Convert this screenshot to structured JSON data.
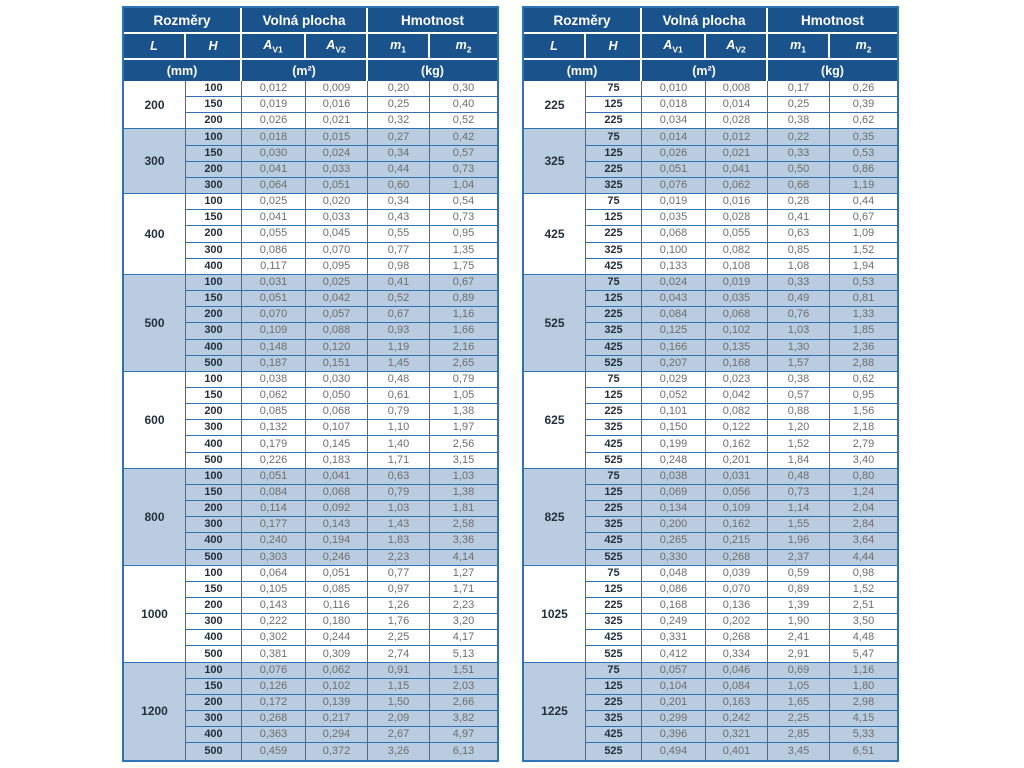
{
  "header": {
    "group_dimensions": "Rozměry",
    "group_free_area": "Volná plocha",
    "group_weight": "Hmotnost",
    "cols": {
      "l": "L",
      "h": "H",
      "a1": {
        "base": "A",
        "sub": "V1"
      },
      "a2": {
        "base": "A",
        "sub": "V2"
      },
      "m1": {
        "base": "m",
        "sub": "1"
      },
      "m2": {
        "base": "m",
        "sub": "2"
      }
    },
    "units": {
      "mm": "(mm)",
      "m2": "(m²)",
      "kg": "(kg)"
    }
  },
  "colors": {
    "header_bg": "#1a528c",
    "border_blue": "#2e74b5",
    "shade_row": "#b9cce0",
    "value_text": "#6e6e6e",
    "dark_text": "#25303f"
  },
  "tables": [
    {
      "name": "left-table",
      "groups": [
        {
          "L": "200",
          "rows": [
            [
              "100",
              "0,012",
              "0,009",
              "0,20",
              "0,30"
            ],
            [
              "150",
              "0,019",
              "0,016",
              "0,25",
              "0,40"
            ],
            [
              "200",
              "0,026",
              "0,021",
              "0,32",
              "0,52"
            ]
          ]
        },
        {
          "L": "300",
          "rows": [
            [
              "100",
              "0,018",
              "0,015",
              "0,27",
              "0,42"
            ],
            [
              "150",
              "0,030",
              "0,024",
              "0,34",
              "0,57"
            ],
            [
              "200",
              "0,041",
              "0,033",
              "0,44",
              "0,73"
            ],
            [
              "300",
              "0,064",
              "0,051",
              "0,60",
              "1,04"
            ]
          ]
        },
        {
          "L": "400",
          "rows": [
            [
              "100",
              "0,025",
              "0,020",
              "0,34",
              "0,54"
            ],
            [
              "150",
              "0,041",
              "0,033",
              "0,43",
              "0,73"
            ],
            [
              "200",
              "0,055",
              "0,045",
              "0,55",
              "0,95"
            ],
            [
              "300",
              "0,086",
              "0,070",
              "0,77",
              "1,35"
            ],
            [
              "400",
              "0,117",
              "0,095",
              "0,98",
              "1,75"
            ]
          ]
        },
        {
          "L": "500",
          "rows": [
            [
              "100",
              "0,031",
              "0,025",
              "0,41",
              "0,67"
            ],
            [
              "150",
              "0,051",
              "0,042",
              "0,52",
              "0,89"
            ],
            [
              "200",
              "0,070",
              "0,057",
              "0,67",
              "1,16"
            ],
            [
              "300",
              "0,109",
              "0,088",
              "0,93",
              "1,66"
            ],
            [
              "400",
              "0,148",
              "0,120",
              "1,19",
              "2,16"
            ],
            [
              "500",
              "0,187",
              "0,151",
              "1,45",
              "2,65"
            ]
          ]
        },
        {
          "L": "600",
          "rows": [
            [
              "100",
              "0,038",
              "0,030",
              "0,48",
              "0,79"
            ],
            [
              "150",
              "0,062",
              "0,050",
              "0,61",
              "1,05"
            ],
            [
              "200",
              "0,085",
              "0,068",
              "0,79",
              "1,38"
            ],
            [
              "300",
              "0,132",
              "0,107",
              "1,10",
              "1,97"
            ],
            [
              "400",
              "0,179",
              "0,145",
              "1,40",
              "2,56"
            ],
            [
              "500",
              "0,226",
              "0,183",
              "1,71",
              "3,15"
            ]
          ]
        },
        {
          "L": "800",
          "rows": [
            [
              "100",
              "0,051",
              "0,041",
              "0,63",
              "1,03"
            ],
            [
              "150",
              "0,084",
              "0,068",
              "0,79",
              "1,38"
            ],
            [
              "200",
              "0,114",
              "0,092",
              "1,03",
              "1,81"
            ],
            [
              "300",
              "0,177",
              "0,143",
              "1,43",
              "2,58"
            ],
            [
              "400",
              "0,240",
              "0,194",
              "1,83",
              "3,36"
            ],
            [
              "500",
              "0,303",
              "0,246",
              "2,23",
              "4,14"
            ]
          ]
        },
        {
          "L": "1000",
          "rows": [
            [
              "100",
              "0,064",
              "0,051",
              "0,77",
              "1,27"
            ],
            [
              "150",
              "0,105",
              "0,085",
              "0,97",
              "1,71"
            ],
            [
              "200",
              "0,143",
              "0,116",
              "1,26",
              "2,23"
            ],
            [
              "300",
              "0,222",
              "0,180",
              "1,76",
              "3,20"
            ],
            [
              "400",
              "0,302",
              "0,244",
              "2,25",
              "4,17"
            ],
            [
              "500",
              "0,381",
              "0,309",
              "2,74",
              "5,13"
            ]
          ]
        },
        {
          "L": "1200",
          "rows": [
            [
              "100",
              "0,076",
              "0,062",
              "0,91",
              "1,51"
            ],
            [
              "150",
              "0,126",
              "0,102",
              "1,15",
              "2,03"
            ],
            [
              "200",
              "0,172",
              "0,139",
              "1,50",
              "2,66"
            ],
            [
              "300",
              "0,268",
              "0,217",
              "2,09",
              "3,82"
            ],
            [
              "400",
              "0,363",
              "0,294",
              "2,67",
              "4,97"
            ],
            [
              "500",
              "0,459",
              "0,372",
              "3,26",
              "6,13"
            ]
          ]
        }
      ]
    },
    {
      "name": "right-table",
      "groups": [
        {
          "L": "225",
          "rows": [
            [
              "75",
              "0,010",
              "0,008",
              "0,17",
              "0,26"
            ],
            [
              "125",
              "0,018",
              "0,014",
              "0,25",
              "0,39"
            ],
            [
              "225",
              "0,034",
              "0,028",
              "0,38",
              "0,62"
            ]
          ]
        },
        {
          "L": "325",
          "rows": [
            [
              "75",
              "0,014",
              "0,012",
              "0,22",
              "0,35"
            ],
            [
              "125",
              "0,026",
              "0,021",
              "0,33",
              "0,53"
            ],
            [
              "225",
              "0,051",
              "0,041",
              "0,50",
              "0,86"
            ],
            [
              "325",
              "0,076",
              "0,062",
              "0,68",
              "1,19"
            ]
          ]
        },
        {
          "L": "425",
          "rows": [
            [
              "75",
              "0,019",
              "0,016",
              "0,28",
              "0,44"
            ],
            [
              "125",
              "0,035",
              "0,028",
              "0,41",
              "0,67"
            ],
            [
              "225",
              "0,068",
              "0,055",
              "0,63",
              "1,09"
            ],
            [
              "325",
              "0,100",
              "0,082",
              "0,85",
              "1,52"
            ],
            [
              "425",
              "0,133",
              "0,108",
              "1,08",
              "1,94"
            ]
          ]
        },
        {
          "L": "525",
          "rows": [
            [
              "75",
              "0,024",
              "0,019",
              "0,33",
              "0,53"
            ],
            [
              "125",
              "0,043",
              "0,035",
              "0,49",
              "0,81"
            ],
            [
              "225",
              "0,084",
              "0,068",
              "0,76",
              "1,33"
            ],
            [
              "325",
              "0,125",
              "0,102",
              "1,03",
              "1,85"
            ],
            [
              "425",
              "0,166",
              "0,135",
              "1,30",
              "2,36"
            ],
            [
              "525",
              "0,207",
              "0,168",
              "1,57",
              "2,88"
            ]
          ]
        },
        {
          "L": "625",
          "rows": [
            [
              "75",
              "0,029",
              "0,023",
              "0,38",
              "0,62"
            ],
            [
              "125",
              "0,052",
              "0,042",
              "0,57",
              "0,95"
            ],
            [
              "225",
              "0,101",
              "0,082",
              "0,88",
              "1,56"
            ],
            [
              "325",
              "0,150",
              "0,122",
              "1,20",
              "2,18"
            ],
            [
              "425",
              "0,199",
              "0,162",
              "1,52",
              "2,79"
            ],
            [
              "525",
              "0,248",
              "0,201",
              "1,84",
              "3,40"
            ]
          ]
        },
        {
          "L": "825",
          "rows": [
            [
              "75",
              "0,038",
              "0,031",
              "0,48",
              "0,80"
            ],
            [
              "125",
              "0,069",
              "0,056",
              "0,73",
              "1,24"
            ],
            [
              "225",
              "0,134",
              "0,109",
              "1,14",
              "2,04"
            ],
            [
              "325",
              "0,200",
              "0,162",
              "1,55",
              "2,84"
            ],
            [
              "425",
              "0,265",
              "0,215",
              "1,96",
              "3,64"
            ],
            [
              "525",
              "0,330",
              "0,268",
              "2,37",
              "4,44"
            ]
          ]
        },
        {
          "L": "1025",
          "rows": [
            [
              "75",
              "0,048",
              "0,039",
              "0,59",
              "0,98"
            ],
            [
              "125",
              "0,086",
              "0,070",
              "0,89",
              "1,52"
            ],
            [
              "225",
              "0,168",
              "0,136",
              "1,39",
              "2,51"
            ],
            [
              "325",
              "0,249",
              "0,202",
              "1,90",
              "3,50"
            ],
            [
              "425",
              "0,331",
              "0,268",
              "2,41",
              "4,48"
            ],
            [
              "525",
              "0,412",
              "0,334",
              "2,91",
              "5,47"
            ]
          ]
        },
        {
          "L": "1225",
          "rows": [
            [
              "75",
              "0,057",
              "0,046",
              "0,69",
              "1,16"
            ],
            [
              "125",
              "0,104",
              "0,084",
              "1,05",
              "1,80"
            ],
            [
              "225",
              "0,201",
              "0,163",
              "1,65",
              "2,98"
            ],
            [
              "325",
              "0,299",
              "0,242",
              "2,25",
              "4,15"
            ],
            [
              "425",
              "0,396",
              "0,321",
              "2,85",
              "5,33"
            ],
            [
              "525",
              "0,494",
              "0,401",
              "3,45",
              "6,51"
            ]
          ]
        }
      ]
    }
  ]
}
